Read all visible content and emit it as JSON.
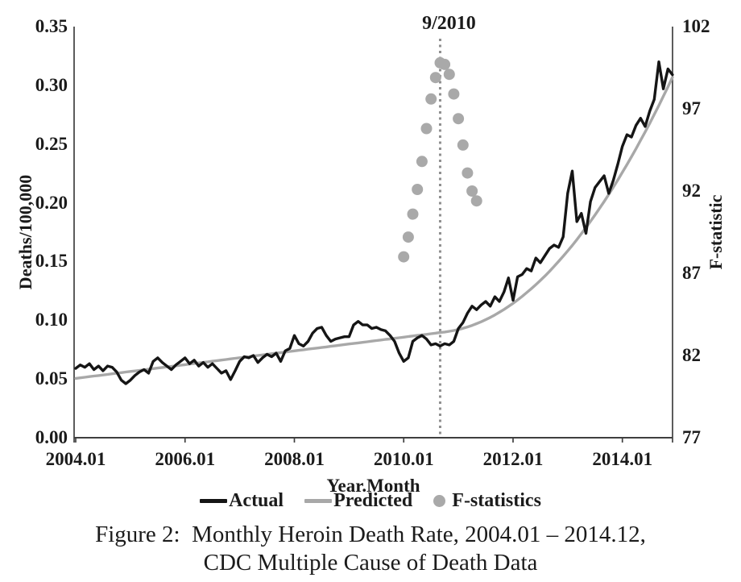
{
  "figure": {
    "caption_line1": "Figure 2:  Monthly Heroin Death Rate, 2004.01 – 2014.12,",
    "caption_line2": "CDC Multiple Cause of Death Data"
  },
  "colors": {
    "actual": "#151515",
    "predicted": "#a8a8a8",
    "f_dots": "#a9a9a9",
    "break_line": "#8f8f8f",
    "spine": "#3f3f3f",
    "text": "#1b1b1b"
  },
  "chart_data": {
    "type": "line",
    "x_axis": {
      "label": "Year.Month",
      "tick_labels": [
        "2004.01",
        "2006.01",
        "2008.01",
        "2010.01",
        "2012.01",
        "2014.01"
      ],
      "tick_months": [
        0,
        24,
        48,
        72,
        96,
        120
      ],
      "range_months": [
        "2004.01",
        "2014.12"
      ],
      "n_months": 132
    },
    "y_left": {
      "label": "Deaths/100,000",
      "tick_labels": [
        "0.35",
        "0.30",
        "0.25",
        "0.20",
        "0.15",
        "0.10",
        "0.05",
        "0.00"
      ],
      "tick_values": [
        0.35,
        0.3,
        0.25,
        0.2,
        0.15,
        0.1,
        0.05,
        0.0
      ],
      "min": 0,
      "max": 0.35
    },
    "y_right": {
      "label": "F-statistic",
      "tick_labels": [
        "102",
        "97",
        "92",
        "87",
        "82",
        "77"
      ],
      "tick_values": [
        102,
        97,
        92,
        87,
        82,
        77
      ],
      "min": 77,
      "max": 102
    },
    "vline": {
      "label": "9/2010",
      "month_index": 80
    },
    "legend": [
      {
        "label": "Actual",
        "marker": "line",
        "color": "#151515"
      },
      {
        "label": "Predicted",
        "marker": "line",
        "color": "#a8a8a8"
      },
      {
        "label": "F-statistics",
        "marker": "dot",
        "color": "#a9a9a9"
      }
    ],
    "series": [
      {
        "name": "Actual",
        "type": "line",
        "axis": "left",
        "values": [
          0.059,
          0.062,
          0.06,
          0.063,
          0.058,
          0.061,
          0.057,
          0.061,
          0.06,
          0.056,
          0.049,
          0.046,
          0.049,
          0.053,
          0.056,
          0.058,
          0.055,
          0.065,
          0.068,
          0.064,
          0.061,
          0.058,
          0.062,
          0.065,
          0.068,
          0.063,
          0.066,
          0.061,
          0.064,
          0.06,
          0.063,
          0.059,
          0.055,
          0.057,
          0.0495,
          0.057,
          0.065,
          0.069,
          0.068,
          0.07,
          0.064,
          0.068,
          0.071,
          0.069,
          0.072,
          0.065,
          0.074,
          0.076,
          0.087,
          0.08,
          0.078,
          0.082,
          0.089,
          0.093,
          0.094,
          0.087,
          0.082,
          0.084,
          0.085,
          0.086,
          0.086,
          0.096,
          0.099,
          0.096,
          0.096,
          0.093,
          0.094,
          0.092,
          0.091,
          0.087,
          0.082,
          0.072,
          0.065,
          0.068,
          0.082,
          0.085,
          0.087,
          0.084,
          0.079,
          0.08,
          0.078,
          0.08,
          0.079,
          0.082,
          0.093,
          0.098,
          0.106,
          0.112,
          0.109,
          0.113,
          0.116,
          0.112,
          0.12,
          0.116,
          0.124,
          0.136,
          0.117,
          0.137,
          0.139,
          0.144,
          0.142,
          0.153,
          0.149,
          0.155,
          0.161,
          0.164,
          0.162,
          0.171,
          0.208,
          0.227,
          0.184,
          0.191,
          0.174,
          0.201,
          0.213,
          0.218,
          0.223,
          0.208,
          0.219,
          0.233,
          0.248,
          0.258,
          0.256,
          0.266,
          0.272,
          0.265,
          0.278,
          0.288,
          0.32,
          0.297,
          0.314,
          0.309
        ]
      },
      {
        "name": "Predicted",
        "type": "line",
        "axis": "left",
        "values": [
          0.0505,
          0.051,
          0.0515,
          0.052,
          0.0525,
          0.0529,
          0.0534,
          0.0539,
          0.0544,
          0.0549,
          0.0554,
          0.0559,
          0.0564,
          0.0568,
          0.0573,
          0.0578,
          0.0583,
          0.0588,
          0.0593,
          0.0598,
          0.0603,
          0.0607,
          0.0612,
          0.0617,
          0.0622,
          0.0627,
          0.0632,
          0.0637,
          0.0642,
          0.0646,
          0.0651,
          0.0656,
          0.0661,
          0.0666,
          0.0671,
          0.0676,
          0.0681,
          0.0685,
          0.069,
          0.0695,
          0.07,
          0.0705,
          0.071,
          0.0715,
          0.072,
          0.0724,
          0.0729,
          0.0734,
          0.0739,
          0.0744,
          0.0749,
          0.0754,
          0.0759,
          0.0763,
          0.0768,
          0.0773,
          0.0778,
          0.0783,
          0.0788,
          0.0793,
          0.0798,
          0.0802,
          0.0807,
          0.0812,
          0.0817,
          0.0822,
          0.0827,
          0.0832,
          0.0837,
          0.0841,
          0.0846,
          0.0851,
          0.0856,
          0.0861,
          0.0866,
          0.0871,
          0.0876,
          0.088,
          0.0885,
          0.089,
          0.0896,
          0.09,
          0.0906,
          0.0913,
          0.0921,
          0.0931,
          0.0943,
          0.0956,
          0.0971,
          0.0987,
          0.1005,
          0.1024,
          0.1045,
          0.1068,
          0.1092,
          0.1117,
          0.1144,
          0.1173,
          0.1203,
          0.1235,
          0.1268,
          0.1303,
          0.1339,
          0.1377,
          0.1416,
          0.1458,
          0.1501,
          0.1545,
          0.159,
          0.1637,
          0.1686,
          0.1737,
          0.1789,
          0.1842,
          0.1897,
          0.1953,
          0.2011,
          0.2071,
          0.2132,
          0.2195,
          0.2259,
          0.2325,
          0.2392,
          0.2461,
          0.2532,
          0.2603,
          0.2677,
          0.2752,
          0.2828,
          0.2907,
          0.2987,
          0.3068
        ]
      },
      {
        "name": "F-statistics",
        "type": "scatter",
        "axis": "right",
        "months": [
          72,
          73,
          74,
          75,
          76,
          77,
          78,
          79,
          80,
          81,
          82,
          83,
          84,
          85,
          86,
          87,
          88
        ],
        "values": [
          88.0,
          89.2,
          90.6,
          92.1,
          93.8,
          95.8,
          97.6,
          98.9,
          99.8,
          99.7,
          99.1,
          97.9,
          96.4,
          94.8,
          93.1,
          92.0,
          91.4
        ]
      }
    ]
  }
}
